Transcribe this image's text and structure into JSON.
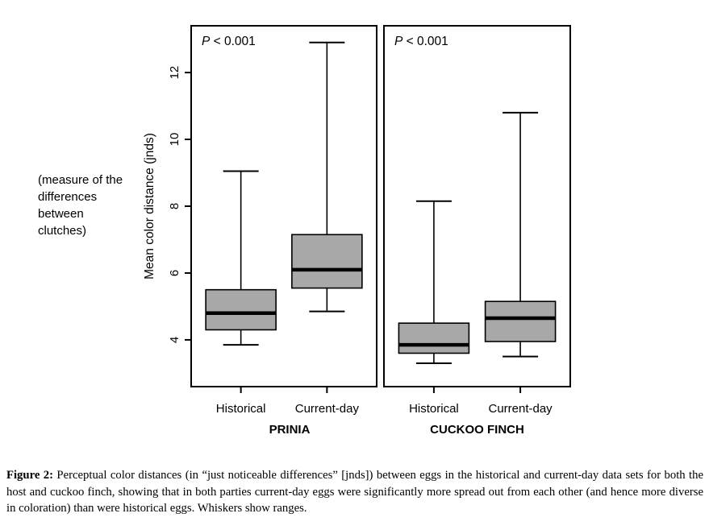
{
  "figure": {
    "annotation": {
      "lines": [
        "(measure of the",
        "differences",
        "between",
        "clutches)"
      ]
    },
    "caption": {
      "label": "Figure 2:",
      "text": " Perceptual color distances (in “just noticeable differences” [jnds]) between eggs in the historical and current-day data sets for both the host and cuckoo finch, showing that in both parties current-day eggs were significantly more spread out from each other (and hence more diverse in coloration) than were historical eggs. Whiskers show ranges."
    }
  },
  "chart_data": {
    "type": "boxplot",
    "ylabel": "Mean color distance  (jnds)",
    "yticks": [
      4,
      6,
      8,
      10,
      12
    ],
    "ylim": [
      2.6,
      13.4
    ],
    "grid": false,
    "box_fill": "#a8a8a8",
    "line_color": "#000000",
    "panels": [
      {
        "title": "PRINIA",
        "p_label": "P < 0.001",
        "categories": [
          "Historical",
          "Current-day"
        ],
        "boxes": [
          {
            "category": "Historical",
            "whisker_low": 3.85,
            "q1": 4.3,
            "median": 4.8,
            "q3": 5.5,
            "whisker_high": 9.05
          },
          {
            "category": "Current-day",
            "whisker_low": 4.85,
            "q1": 5.55,
            "median": 6.1,
            "q3": 7.15,
            "whisker_high": 12.9
          }
        ]
      },
      {
        "title": "CUCKOO FINCH",
        "p_label": "P < 0.001",
        "categories": [
          "Historical",
          "Current-day"
        ],
        "boxes": [
          {
            "category": "Historical",
            "whisker_low": 3.3,
            "q1": 3.6,
            "median": 3.85,
            "q3": 4.5,
            "whisker_high": 8.15
          },
          {
            "category": "Current-day",
            "whisker_low": 3.5,
            "q1": 3.95,
            "median": 4.65,
            "q3": 5.15,
            "whisker_high": 10.8
          }
        ]
      }
    ]
  }
}
